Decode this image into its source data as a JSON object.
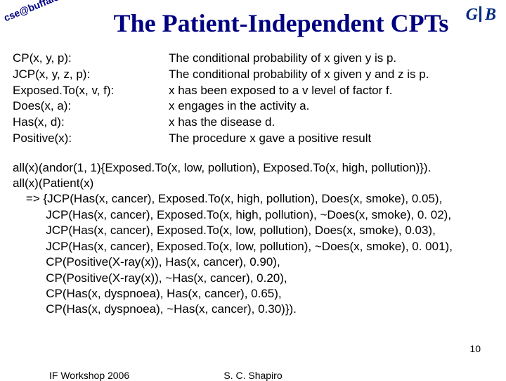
{
  "corner_tag": "cse@buffalo",
  "logo": {
    "left": "G",
    "right": "B"
  },
  "title": "The Patient-Independent CPTs",
  "definitions": [
    {
      "term": "CP(x, y, p):",
      "desc": "The conditional probability of x given y is p."
    },
    {
      "term": "JCP(x, y, z, p):",
      "desc": "The conditional probability of x given y and z is p."
    },
    {
      "term": "Exposed.To(x, v, f):",
      "desc": "x has been exposed to a v level of factor f."
    },
    {
      "term": "Does(x, a):",
      "desc": "x engages in the activity a."
    },
    {
      "term": "Has(x, d):",
      "desc": "x has the disease d."
    },
    {
      "term": "Positive(x):",
      "desc": "The procedure x gave a positive result"
    }
  ],
  "rules": "all(x)(andor(1, 1){Exposed.To(x, low, pollution), Exposed.To(x, high, pollution)}).\nall(x)(Patient(x)\n    => {JCP(Has(x, cancer), Exposed.To(x, high, pollution), Does(x, smoke), 0.05),\n          JCP(Has(x, cancer), Exposed.To(x, high, pollution), ~Does(x, smoke), 0. 02),\n          JCP(Has(x, cancer), Exposed.To(x, low, pollution), Does(x, smoke), 0.03),\n          JCP(Has(x, cancer), Exposed.To(x, low, pollution), ~Does(x, smoke), 0. 001),\n          CP(Positive(X-ray(x)), Has(x, cancer), 0.90),\n          CP(Positive(X-ray(x)), ~Has(x, cancer), 0.20),\n          CP(Has(x, dyspnoea), Has(x, cancer), 0.65),\n          CP(Has(x, dyspnoea), ~Has(x, cancer), 0.30)}).",
  "footer": {
    "left": "IF Workshop 2006",
    "center": "S. C. Shapiro"
  },
  "page_number": "10"
}
